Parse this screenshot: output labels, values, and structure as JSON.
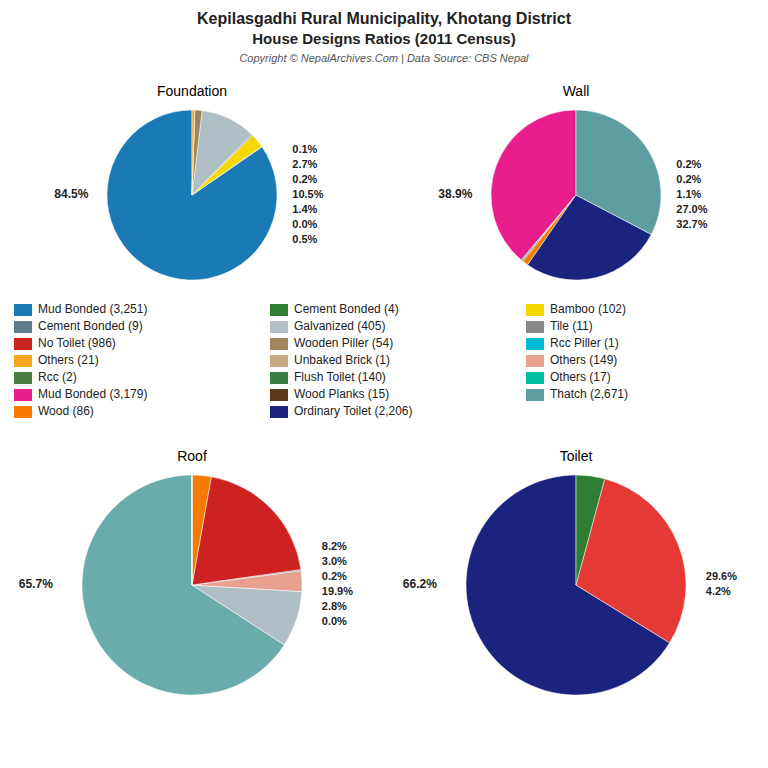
{
  "title": "Kepilasgadhi Rural Municipality, Khotang District",
  "subtitle": "House Designs Ratios (2011 Census)",
  "annotations": [
    "Copyright © NepalArchives.Com | Data Source: CBS Nepal"
  ],
  "series": [
    {
      "name": "Mud Bonded (3,251)",
      "color": "#1a7ab5"
    },
    {
      "name": "Cement Bonded (4)",
      "color": "#2e7d32"
    },
    {
      "name": "Bamboo (102)",
      "color": "#f5d800"
    },
    {
      "name": "Cement Bonded (9)",
      "color": "#607d8b"
    },
    {
      "name": "Galvanized (405)",
      "color": "#b0bec5"
    },
    {
      "name": "Tile (11)",
      "color": "#888888"
    },
    {
      "name": "No Toilet (986)",
      "color": "#cc2222"
    },
    {
      "name": "Wooden Piller (54)",
      "color": "#a0845c"
    },
    {
      "name": "Rcc Piller (1)",
      "color": "#00bcd4"
    },
    {
      "name": "Others (21)",
      "color": "#f5a623"
    },
    {
      "name": "Unbaked Brick (1)",
      "color": "#c8a882"
    },
    {
      "name": "Others (149)",
      "color": "#e8a090"
    },
    {
      "name": "Rcc (2)",
      "color": "#4a7c44"
    },
    {
      "name": "Flush Toilet (140)",
      "color": "#3a7d44"
    },
    {
      "name": "Others (17)",
      "color": "#00bfa5"
    },
    {
      "name": "Mud Bonded (3,179)",
      "color": "#e91e8c"
    },
    {
      "name": "Wood Planks (15)",
      "color": "#5d3a1a"
    },
    {
      "name": "Thatch (2,671)",
      "color": "#5f9ea0"
    },
    {
      "name": "Wood (86)",
      "color": "#f57c00"
    },
    {
      "name": "Ordinary Toilet (2,206)",
      "color": "#1a237e"
    }
  ],
  "chart_data": [
    {
      "type": "pie",
      "title": "Foundation",
      "values": [
        84.5,
        0.1,
        2.7,
        0.2,
        10.5,
        1.4,
        0.0,
        0.5
      ],
      "value_labels": [
        "84.5%",
        "0.1%",
        "2.7%",
        "0.2%",
        "10.5%",
        "1.4%",
        "0.0%",
        "0.5%"
      ],
      "colors": [
        "#1a7ab5",
        "#2e7d32",
        "#f5d800",
        "#607d8b",
        "#b0bec5",
        "#a0845c",
        "#00bcd4",
        "#f5a623"
      ],
      "data_labels": true
    },
    {
      "type": "pie",
      "title": "Wall",
      "values": [
        38.9,
        0.2,
        0.2,
        1.1,
        27.0,
        32.7
      ],
      "value_labels": [
        "38.9%",
        "0.2%",
        "0.2%",
        "1.1%",
        "27.0%",
        "32.7%"
      ],
      "colors": [
        "#e91e8c",
        "#00bfa5",
        "#5d3a1a",
        "#f57c00",
        "#1a237e",
        "#5f9ea0"
      ],
      "data_labels": true
    },
    {
      "type": "pie",
      "title": "Roof",
      "values": [
        65.7,
        8.2,
        3.0,
        0.2,
        19.9,
        2.8,
        0.0,
        0.0
      ],
      "value_labels": [
        "65.7%",
        "8.2%",
        "3.0%",
        "0.2%",
        "19.9%",
        "2.8%",
        "0.0%",
        null
      ],
      "colors": [
        "#6aacac",
        "#b0bec5",
        "#e8a090",
        "#888888",
        "#cc2222",
        "#f57c00",
        "#4a7c44",
        "#3a7d44"
      ],
      "data_labels": true
    },
    {
      "type": "pie",
      "title": "Toilet",
      "values": [
        66.2,
        29.6,
        4.2
      ],
      "value_labels": [
        "66.2%",
        "29.6%",
        "4.2%"
      ],
      "colors": [
        "#1a237e",
        "#e53935",
        "#2e7d32"
      ],
      "data_labels": true
    }
  ]
}
